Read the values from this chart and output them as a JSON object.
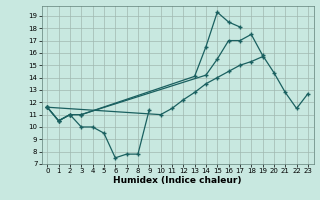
{
  "xlabel": "Humidex (Indice chaleur)",
  "ylabel": "",
  "background_color": "#c8e8e0",
  "grid_color": "#a0b8b0",
  "line_color": "#1a6060",
  "xlim": [
    -0.5,
    23.5
  ],
  "ylim": [
    7,
    19.8
  ],
  "yticks": [
    7,
    8,
    9,
    10,
    11,
    12,
    13,
    14,
    15,
    16,
    17,
    18,
    19
  ],
  "xticks": [
    0,
    1,
    2,
    3,
    4,
    5,
    6,
    7,
    8,
    9,
    10,
    11,
    12,
    13,
    14,
    15,
    16,
    17,
    18,
    19,
    20,
    21,
    22,
    23
  ],
  "series": [
    {
      "points": [
        [
          0,
          11.6
        ],
        [
          1,
          10.5
        ],
        [
          2,
          11.0
        ],
        [
          3,
          10.0
        ],
        [
          4,
          10.0
        ],
        [
          5,
          9.5
        ],
        [
          6,
          7.5
        ],
        [
          7,
          7.8
        ],
        [
          8,
          7.8
        ],
        [
          9,
          11.4
        ]
      ]
    },
    {
      "points": [
        [
          0,
          11.6
        ],
        [
          1,
          10.5
        ],
        [
          2,
          11.0
        ],
        [
          3,
          11.0
        ],
        [
          14,
          14.2
        ],
        [
          15,
          15.5
        ],
        [
          16,
          17.0
        ],
        [
          17,
          17.0
        ],
        [
          18,
          17.5
        ],
        [
          19,
          15.8
        ],
        [
          20,
          14.4
        ],
        [
          21,
          12.8
        ],
        [
          22,
          11.5
        ],
        [
          23,
          12.7
        ]
      ]
    },
    {
      "points": [
        [
          0,
          11.6
        ],
        [
          1,
          10.5
        ],
        [
          2,
          11.0
        ],
        [
          3,
          11.0
        ],
        [
          13,
          14.1
        ],
        [
          14,
          16.5
        ],
        [
          15,
          19.3
        ],
        [
          16,
          18.5
        ],
        [
          17,
          18.1
        ]
      ]
    },
    {
      "points": [
        [
          0,
          11.6
        ],
        [
          10,
          11.0
        ],
        [
          11,
          11.5
        ],
        [
          12,
          12.2
        ],
        [
          13,
          12.8
        ],
        [
          14,
          13.5
        ],
        [
          15,
          14.0
        ],
        [
          16,
          14.5
        ],
        [
          17,
          15.0
        ],
        [
          18,
          15.3
        ],
        [
          19,
          15.7
        ]
      ]
    }
  ]
}
